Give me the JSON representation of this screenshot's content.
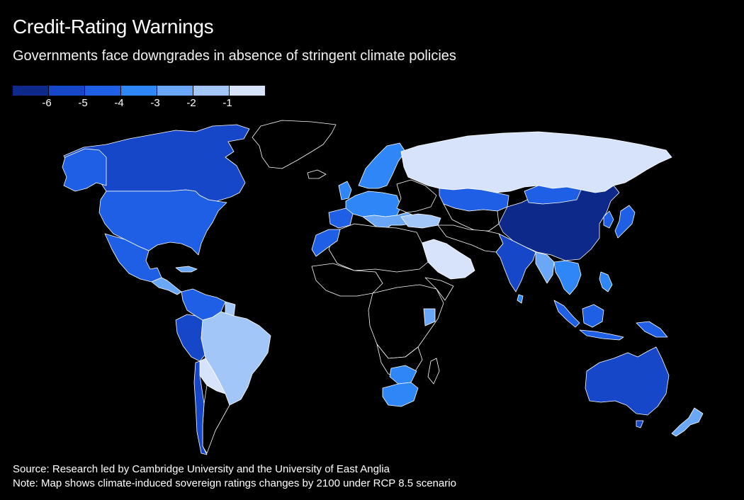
{
  "header": {
    "title": "Credit-Rating Warnings",
    "subtitle": "Governments face downgrades in absence of stringent climate policies"
  },
  "legend": {
    "labels": [
      "-6",
      "-5",
      "-4",
      "-3",
      "-2",
      "-1"
    ],
    "colors": [
      "#0d2a8a",
      "#1747c9",
      "#1f5fe6",
      "#2f86f6",
      "#6aa7f7",
      "#a3c6f8",
      "#d7e3fb"
    ]
  },
  "map": {
    "colors": {
      "no_data": "#000000",
      "border": "#ffffff",
      "d6": "#0d2a8a",
      "d5": "#1747c9",
      "d4": "#1f5fe6",
      "d3": "#2f86f6",
      "d2": "#6aa7f7",
      "d1": "#a3c6f8",
      "d0": "#d7e3fb"
    }
  },
  "footer": {
    "source": "Source: Research led by Cambridge University and the University of East Anglia",
    "note": "Note: Map shows climate-induced sovereign ratings changes by 2100 under RCP 8.5 scenario"
  }
}
